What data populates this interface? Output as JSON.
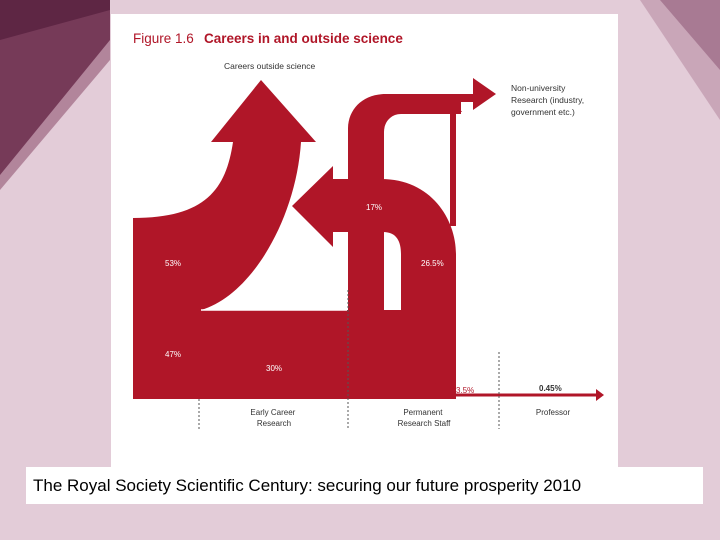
{
  "figure": {
    "number_label": "Figure 1.6",
    "title": "Careers in and outside science"
  },
  "flows": {
    "outside_science_label": "Careers outside science",
    "non_university_label_lines": [
      "Non-university",
      "Research (industry,",
      "government etc.)"
    ],
    "pct_outside_science": "53%",
    "pct_remain": "47%",
    "pct_return": "17%",
    "pct_to_permanent": "30%",
    "pct_permanent_to_nonuni": "26.5%",
    "pct_remain_permanent": "3.5%",
    "pct_professor": "0.45%"
  },
  "stages": {
    "early_career": [
      "Early Career",
      "Research"
    ],
    "permanent": [
      "Permanent",
      "Research Staff"
    ],
    "professor": "Professor"
  },
  "colors": {
    "flow": "#b01628",
    "flow_light": "#c13a4a",
    "background": "#e3ccd8",
    "dark_corner": "#6a2a48"
  },
  "caption": "The Royal Society Scientific Century: securing our future prosperity 2010"
}
